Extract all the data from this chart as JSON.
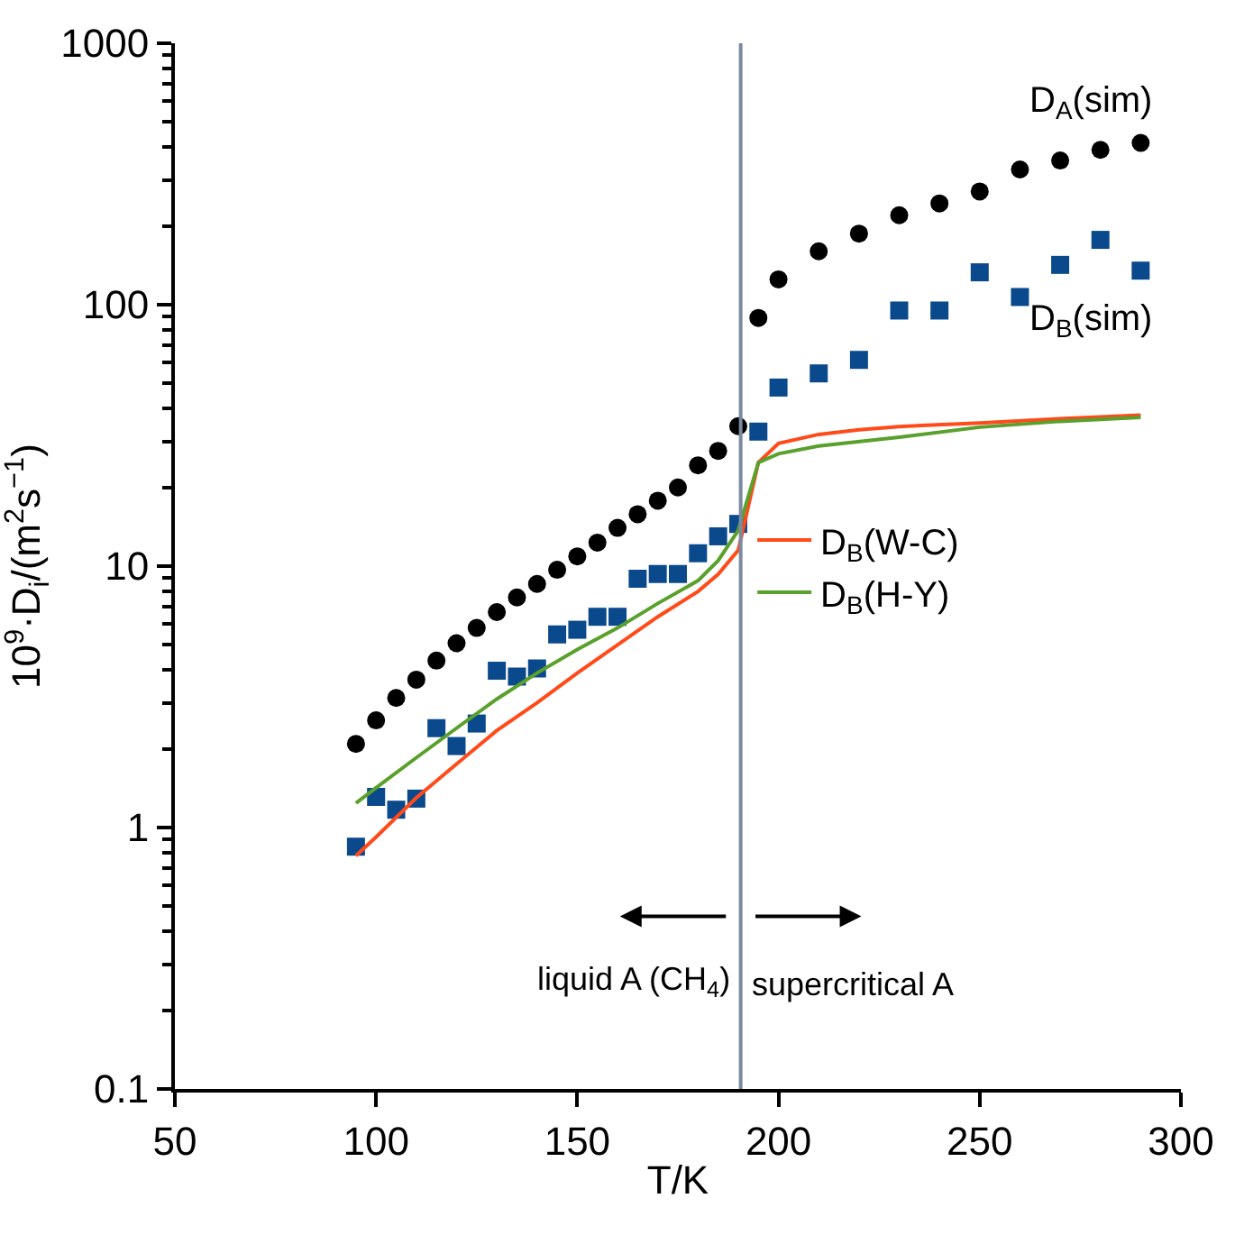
{
  "chart_data": {
    "type": "scatter",
    "xlabel": "T/K",
    "ylabel": "10$^{9}$·D$_{i}$/(m$^{2}$s$^{−1}$)",
    "xlim": [
      50,
      300
    ],
    "xticks": [
      50,
      100,
      150,
      200,
      250,
      300
    ],
    "ylim": [
      0.1,
      1000
    ],
    "yticks": [
      0.1,
      1,
      10,
      100,
      1000
    ],
    "log": "y",
    "legend": "right",
    "series": [
      {
        "name": "D$_{A}$(sim)",
        "marker": "circle",
        "color": "#000000",
        "x": [
          95,
          100,
          105,
          110,
          115,
          120,
          125,
          130,
          135,
          140,
          145,
          150,
          155,
          160,
          165,
          170,
          175,
          180,
          185,
          190,
          195,
          200,
          210,
          220,
          230,
          240,
          250,
          260,
          270,
          280,
          290
        ],
        "values": [
          2.09,
          2.57,
          3.13,
          3.68,
          4.35,
          5.07,
          5.8,
          6.67,
          7.59,
          8.55,
          9.68,
          10.9,
          12.3,
          14.0,
          15.8,
          17.8,
          20.0,
          24.3,
          27.6,
          34.3,
          89,
          125,
          160,
          187,
          220,
          244,
          271,
          329,
          356,
          391,
          416
        ]
      },
      {
        "name": "D$_{B}$(sim)",
        "marker": "square",
        "color": "#0a4a8c",
        "x": [
          95,
          100,
          105,
          110,
          115,
          120,
          125,
          130,
          135,
          140,
          145,
          150,
          155,
          160,
          165,
          170,
          175,
          180,
          185,
          190,
          195,
          200,
          210,
          220,
          230,
          240,
          250,
          260,
          270,
          280,
          290
        ],
        "values": [
          0.845,
          1.31,
          1.17,
          1.29,
          2.4,
          2.05,
          2.5,
          3.98,
          3.78,
          4.06,
          5.48,
          5.71,
          6.4,
          6.4,
          8.95,
          9.33,
          9.33,
          11.2,
          13.0,
          14.5,
          32.7,
          48.2,
          54.6,
          61.5,
          95,
          95,
          133,
          107,
          142,
          177,
          135
        ]
      },
      {
        "name": "D$_{B}$(W-C)",
        "type": "line",
        "color": "#ff4a1a",
        "x": [
          95,
          100,
          110,
          120,
          130,
          140,
          150,
          160,
          170,
          180,
          185,
          190,
          195,
          200,
          210,
          220,
          230,
          250,
          270,
          290
        ],
        "values": [
          0.78,
          0.92,
          1.3,
          1.75,
          2.35,
          3.0,
          3.9,
          5.0,
          6.4,
          8.0,
          9.3,
          11.5,
          24.9,
          29.5,
          31.9,
          33.2,
          34.2,
          35.3,
          36.6,
          37.8
        ]
      },
      {
        "name": "D$_{B}$(H-Y)",
        "type": "line",
        "color": "#5aa02c",
        "x": [
          95,
          100,
          110,
          120,
          130,
          140,
          150,
          160,
          170,
          180,
          185,
          190,
          195,
          200,
          210,
          230,
          250,
          270,
          290
        ],
        "values": [
          1.24,
          1.42,
          1.85,
          2.4,
          3.1,
          3.9,
          4.8,
          5.8,
          7.2,
          8.8,
          10.5,
          13.7,
          24.9,
          26.9,
          28.8,
          31.1,
          34.0,
          35.8,
          37.1
        ]
      }
    ],
    "ref_lines": [
      {
        "axis": "x",
        "value": 190.6,
        "color": "#7a8aa0",
        "line_style": "solid"
      }
    ],
    "annotations": [
      "liquid A (CH$_{4}$)",
      "supercritical A"
    ]
  }
}
